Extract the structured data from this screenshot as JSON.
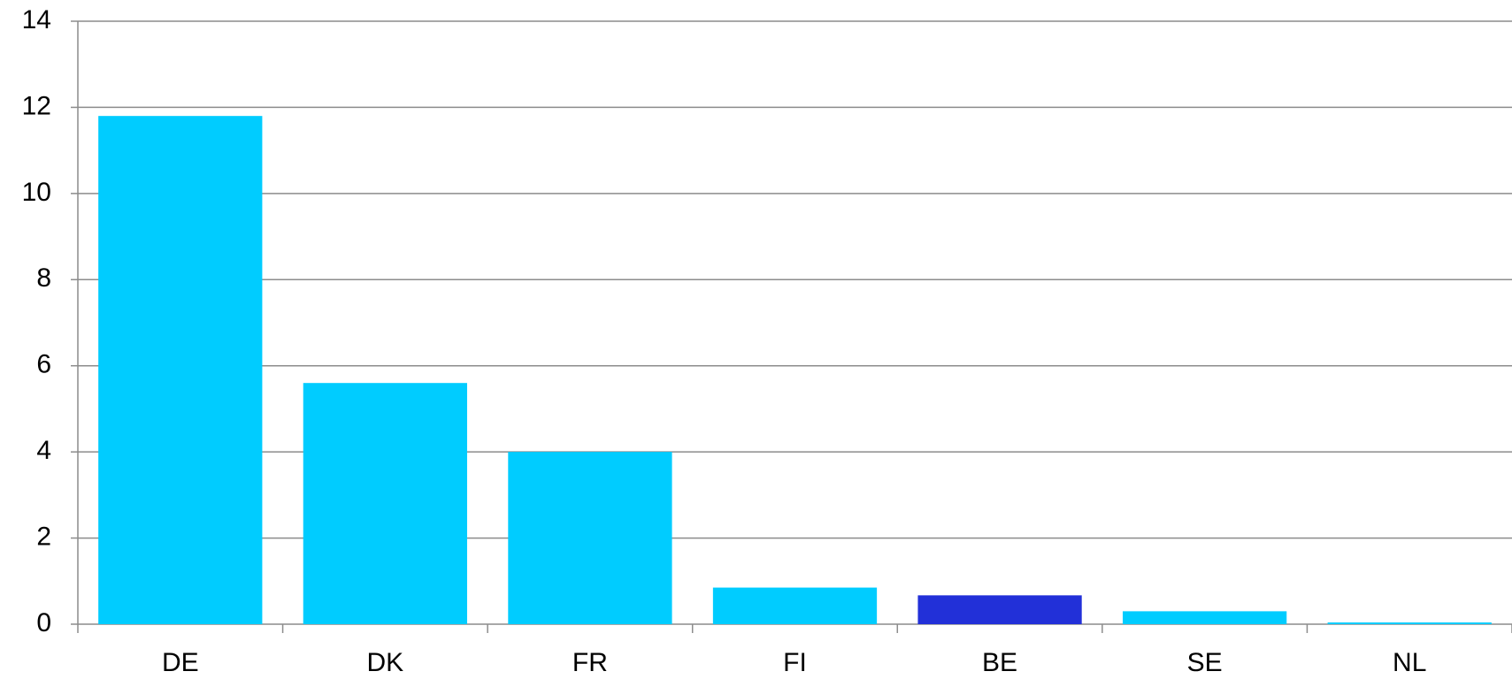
{
  "chart_data": {
    "type": "bar",
    "categories": [
      "DE",
      "DK",
      "FR",
      "FI",
      "BE",
      "SE",
      "NL"
    ],
    "values": [
      11.8,
      5.6,
      4.0,
      0.85,
      0.67,
      0.3,
      0.04
    ],
    "colors": [
      "#00ccff",
      "#00ccff",
      "#00ccff",
      "#00ccff",
      "#2230d8",
      "#00ccff",
      "#00ccff"
    ],
    "ylim": [
      0,
      14
    ],
    "yticks": [
      0,
      2,
      4,
      6,
      8,
      10,
      12,
      14
    ],
    "grid": true
  }
}
